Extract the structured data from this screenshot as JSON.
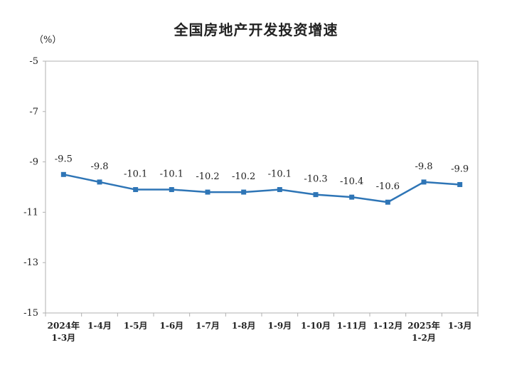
{
  "chart_data": {
    "type": "line",
    "title": "全国房地产开发投资增速",
    "ylabel": "（%）",
    "xlabel": "",
    "ylim": [
      -15,
      -5
    ],
    "yticks": [
      -5,
      -7,
      -9,
      -11,
      -13,
      -15
    ],
    "categories": [
      [
        "2024年",
        "1-3月"
      ],
      [
        "1-4月"
      ],
      [
        "1-5月"
      ],
      [
        "1-6月"
      ],
      [
        "1-7月"
      ],
      [
        "1-8月"
      ],
      [
        "1-9月"
      ],
      [
        "1-10月"
      ],
      [
        "1-11月"
      ],
      [
        "1-12月"
      ],
      [
        "2025年",
        "1-2月"
      ],
      [
        "1-3月"
      ]
    ],
    "series": [
      {
        "values": [
          -9.5,
          -9.8,
          -10.1,
          -10.1,
          -10.2,
          -10.2,
          -10.1,
          -10.3,
          -10.4,
          -10.6,
          -9.8,
          -9.9
        ],
        "data_labels": [
          "-9.5",
          "-9.8",
          "-10.1",
          "-10.1",
          "-10.2",
          "-10.2",
          "-10.1",
          "-10.3",
          "-10.4",
          "-10.6",
          "-9.8",
          "-9.9"
        ],
        "color": "#2e75b6"
      }
    ],
    "grid": false,
    "legend": "none"
  }
}
